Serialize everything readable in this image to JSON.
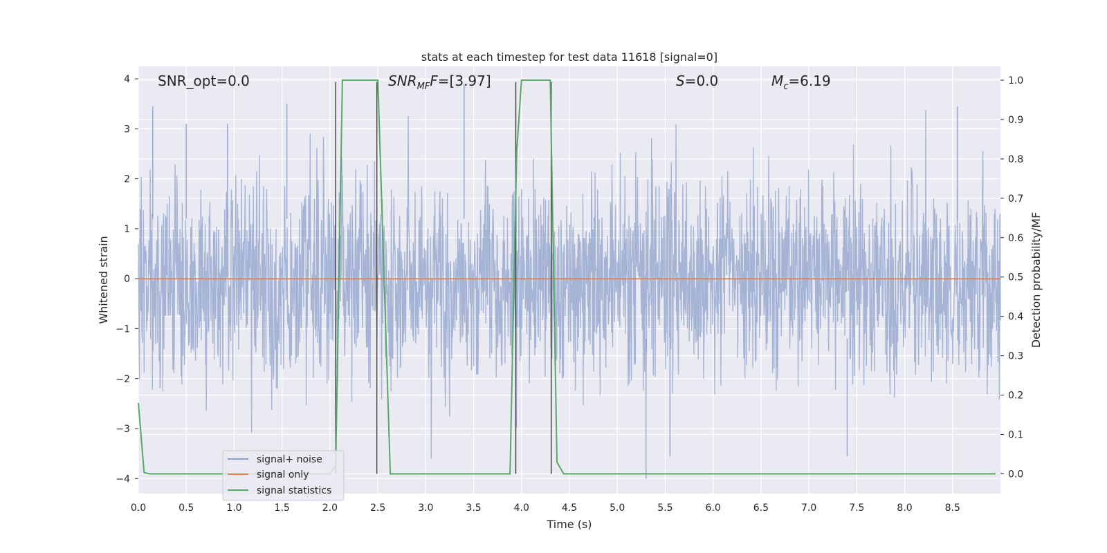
{
  "chart_data": {
    "type": "line",
    "title": "stats at each timestep for test data 11618 [signal=0]",
    "xlabel": "Time (s)",
    "ylabel": "Whitened strain",
    "ylabel_right": "Detection probability/MF",
    "xlim": [
      0.0,
      9.0
    ],
    "ylim": [
      -4.3,
      4.25
    ],
    "ylim_right": [
      -0.05,
      1.035
    ],
    "grid": true,
    "x_ticks": [
      "0.0",
      "0.5",
      "1.0",
      "1.5",
      "2.0",
      "2.5",
      "3.0",
      "3.5",
      "4.0",
      "4.5",
      "5.0",
      "5.5",
      "6.0",
      "6.5",
      "7.0",
      "7.5",
      "8.0",
      "8.5"
    ],
    "y_ticks": [
      "4",
      "3",
      "2",
      "1",
      "0",
      "−1",
      "−2",
      "−3",
      "−4"
    ],
    "y_right_ticks": [
      "1.0",
      "0.9",
      "0.8",
      "0.7",
      "0.6",
      "0.5",
      "0.4",
      "0.3",
      "0.2",
      "0.1",
      "0.0"
    ],
    "annotations": {
      "snr_opt": "SNR_opt=0.0",
      "snr_mf_main": "SNR",
      "snr_mf_sub": "MF",
      "snr_mf_rest": "=[3.97]",
      "s_main": "S",
      "s_rest": "=0.0",
      "mc_main": "M",
      "mc_sub": "c",
      "mc_rest": "=6.19"
    },
    "legend": {
      "placement": "lower-left",
      "entries": [
        "signal+ noise",
        "signal only",
        "signal statistics"
      ]
    },
    "series": [
      {
        "name": "signal+ noise",
        "color": "#8da0cb",
        "noise_stats": {
          "mean": 0.0,
          "std": 1.0,
          "max_observed": 3.9,
          "min_observed": -4.0
        },
        "notable_peaks": [
          [
            0.15,
            3.45
          ],
          [
            0.5,
            3.1
          ],
          [
            0.93,
            3.1
          ],
          [
            1.55,
            3.5
          ],
          [
            3.4,
            3.9
          ],
          [
            5.3,
            -4.0
          ],
          [
            5.55,
            -3.55
          ],
          [
            7.4,
            -3.55
          ],
          [
            8.55,
            3.45
          ]
        ]
      },
      {
        "name": "signal only",
        "color": "#dd8452",
        "x": [
          0.0,
          9.0
        ],
        "y": [
          0.0,
          0.0
        ]
      },
      {
        "name": "signal statistics",
        "color": "#55a868",
        "axis": "right",
        "x": [
          0.0,
          0.06,
          0.12,
          2.0,
          2.06,
          2.13,
          2.5,
          2.63,
          3.88,
          3.95,
          4.0,
          4.3,
          4.37,
          4.44,
          8.95
        ],
        "y": [
          0.18,
          0.003,
          0.0,
          0.0,
          0.02,
          1.0,
          1.0,
          0.0,
          0.0,
          0.82,
          1.0,
          1.0,
          0.03,
          0.0,
          0.0
        ]
      }
    ],
    "vertical_lines": {
      "color": "#444444",
      "x": [
        2.06,
        2.49,
        3.94,
        4.31
      ],
      "right_top": 0.995,
      "right_bottom": 0.0
    }
  }
}
